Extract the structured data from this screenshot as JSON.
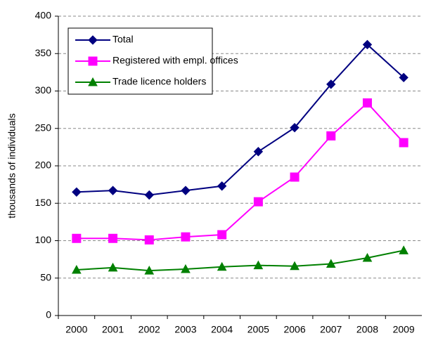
{
  "chart_data": {
    "type": "line",
    "y_label": "thousands of individuals",
    "categories": [
      "2000",
      "2001",
      "2002",
      "2003",
      "2004",
      "2005",
      "2006",
      "2007",
      "2008",
      "2009"
    ],
    "series": [
      {
        "name": "Total",
        "color": "#000080",
        "marker": "diamond",
        "values": [
          165,
          167,
          161,
          167,
          173,
          219,
          251,
          309,
          362,
          318
        ]
      },
      {
        "name": "Registered with empl. offices",
        "color": "#ff00ff",
        "marker": "square",
        "values": [
          103,
          103,
          101,
          105,
          108,
          152,
          185,
          240,
          284,
          231
        ]
      },
      {
        "name": "Trade licence holders",
        "color": "#008000",
        "marker": "triangle",
        "values": [
          61,
          64,
          60,
          62,
          65,
          67,
          66,
          69,
          77,
          87
        ]
      }
    ],
    "ylim": [
      0,
      400
    ],
    "yticks": [
      0,
      50,
      100,
      150,
      200,
      250,
      300,
      350,
      400
    ],
    "grid": true,
    "legend": "upper left"
  }
}
